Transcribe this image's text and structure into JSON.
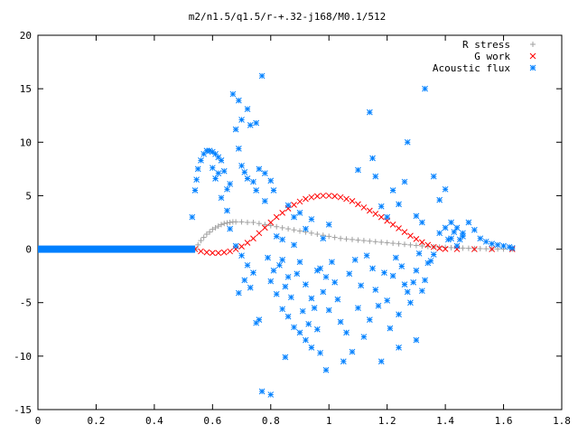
{
  "chart_data": {
    "type": "scatter",
    "title": "m2/n1.5/q1.5/r-+.32-j168/M0.1/512",
    "xlabel": "",
    "ylabel": "",
    "xlim": [
      0,
      1.8
    ],
    "ylim": [
      -15,
      20
    ],
    "x_ticks": [
      0,
      0.2,
      0.4,
      0.6,
      0.8,
      1,
      1.2,
      1.4,
      1.6,
      1.8
    ],
    "y_ticks": [
      -15,
      -10,
      -5,
      0,
      5,
      10,
      15,
      20
    ],
    "x_tick_labels": [
      "0",
      "0.2",
      "0.4",
      "0.6",
      "0.8",
      "1",
      "1.2",
      "1.4",
      "1.6",
      "1.8"
    ],
    "y_tick_labels": [
      "-15",
      "-10",
      "-5",
      "0",
      "5",
      "10",
      "15",
      "20"
    ],
    "grid": false,
    "legend_position": "top-right",
    "series": [
      {
        "name": "R stress",
        "marker": "plus",
        "color": "#a0a0a0",
        "points": [
          [
            0.54,
            0.0
          ],
          [
            0.55,
            0.4
          ],
          [
            0.56,
            0.8
          ],
          [
            0.57,
            1.1
          ],
          [
            0.58,
            1.4
          ],
          [
            0.59,
            1.6
          ],
          [
            0.6,
            1.85
          ],
          [
            0.61,
            2.0
          ],
          [
            0.62,
            2.15
          ],
          [
            0.63,
            2.3
          ],
          [
            0.64,
            2.4
          ],
          [
            0.65,
            2.45
          ],
          [
            0.66,
            2.5
          ],
          [
            0.67,
            2.55
          ],
          [
            0.68,
            2.55
          ],
          [
            0.7,
            2.55
          ],
          [
            0.72,
            2.5
          ],
          [
            0.74,
            2.5
          ],
          [
            0.76,
            2.4
          ],
          [
            0.78,
            2.3
          ],
          [
            0.8,
            2.2
          ],
          [
            0.82,
            2.1
          ],
          [
            0.84,
            2.0
          ],
          [
            0.86,
            1.9
          ],
          [
            0.88,
            1.8
          ],
          [
            0.9,
            1.7
          ],
          [
            0.92,
            1.6
          ],
          [
            0.94,
            1.5
          ],
          [
            0.96,
            1.4
          ],
          [
            0.98,
            1.3
          ],
          [
            1.0,
            1.2
          ],
          [
            1.02,
            1.1
          ],
          [
            1.04,
            1.0
          ],
          [
            1.06,
            0.95
          ],
          [
            1.08,
            0.9
          ],
          [
            1.1,
            0.85
          ],
          [
            1.12,
            0.8
          ],
          [
            1.14,
            0.75
          ],
          [
            1.16,
            0.7
          ],
          [
            1.18,
            0.65
          ],
          [
            1.2,
            0.6
          ],
          [
            1.22,
            0.55
          ],
          [
            1.24,
            0.5
          ],
          [
            1.26,
            0.45
          ],
          [
            1.28,
            0.4
          ],
          [
            1.3,
            0.35
          ],
          [
            1.32,
            0.3
          ],
          [
            1.34,
            0.25
          ],
          [
            1.36,
            0.22
          ],
          [
            1.38,
            0.2
          ],
          [
            1.4,
            0.17
          ],
          [
            1.42,
            0.14
          ],
          [
            1.44,
            0.12
          ],
          [
            1.46,
            0.1
          ],
          [
            1.48,
            0.08
          ],
          [
            1.5,
            0.06
          ],
          [
            1.52,
            0.05
          ],
          [
            1.54,
            0.04
          ],
          [
            1.56,
            0.03
          ],
          [
            1.58,
            0.02
          ],
          [
            1.6,
            0.01
          ],
          [
            1.63,
            0.0
          ]
        ]
      },
      {
        "name": "G work",
        "marker": "cross",
        "color": "#ff0000",
        "points": [
          [
            0.54,
            0.0
          ],
          [
            0.56,
            -0.2
          ],
          [
            0.58,
            -0.3
          ],
          [
            0.6,
            -0.35
          ],
          [
            0.62,
            -0.35
          ],
          [
            0.64,
            -0.3
          ],
          [
            0.66,
            -0.2
          ],
          [
            0.68,
            0.0
          ],
          [
            0.7,
            0.25
          ],
          [
            0.72,
            0.6
          ],
          [
            0.74,
            1.0
          ],
          [
            0.76,
            1.5
          ],
          [
            0.78,
            2.0
          ],
          [
            0.8,
            2.5
          ],
          [
            0.82,
            3.0
          ],
          [
            0.84,
            3.4
          ],
          [
            0.86,
            3.8
          ],
          [
            0.88,
            4.15
          ],
          [
            0.9,
            4.45
          ],
          [
            0.92,
            4.7
          ],
          [
            0.94,
            4.85
          ],
          [
            0.96,
            4.95
          ],
          [
            0.98,
            5.0
          ],
          [
            1.0,
            5.0
          ],
          [
            1.02,
            4.95
          ],
          [
            1.04,
            4.85
          ],
          [
            1.06,
            4.7
          ],
          [
            1.08,
            4.5
          ],
          [
            1.1,
            4.2
          ],
          [
            1.12,
            3.9
          ],
          [
            1.14,
            3.6
          ],
          [
            1.16,
            3.3
          ],
          [
            1.18,
            3.0
          ],
          [
            1.2,
            2.65
          ],
          [
            1.22,
            2.3
          ],
          [
            1.24,
            1.95
          ],
          [
            1.26,
            1.6
          ],
          [
            1.28,
            1.25
          ],
          [
            1.3,
            0.95
          ],
          [
            1.32,
            0.65
          ],
          [
            1.34,
            0.4
          ],
          [
            1.36,
            0.2
          ],
          [
            1.38,
            0.08
          ],
          [
            1.4,
            0.02
          ],
          [
            1.44,
            0.0
          ],
          [
            1.5,
            0.0
          ],
          [
            1.56,
            0.0
          ],
          [
            1.63,
            0.0
          ]
        ]
      },
      {
        "name": "Acoustic flux",
        "marker": "star",
        "color": "#0080ff",
        "points": [
          [
            0.53,
            3.0
          ],
          [
            0.54,
            5.5
          ],
          [
            0.545,
            6.5
          ],
          [
            0.55,
            7.5
          ],
          [
            0.56,
            8.3
          ],
          [
            0.57,
            8.9
          ],
          [
            0.58,
            9.2
          ],
          [
            0.59,
            9.2
          ],
          [
            0.6,
            9.1
          ],
          [
            0.61,
            8.9
          ],
          [
            0.62,
            8.6
          ],
          [
            0.63,
            8.3
          ],
          [
            0.6,
            7.6
          ],
          [
            0.61,
            6.6
          ],
          [
            0.62,
            7.1
          ],
          [
            0.64,
            7.3
          ],
          [
            0.65,
            5.6
          ],
          [
            0.66,
            6.1
          ],
          [
            0.63,
            4.8
          ],
          [
            0.65,
            3.6
          ],
          [
            0.67,
            14.5
          ],
          [
            0.69,
            13.9
          ],
          [
            0.7,
            12.1
          ],
          [
            0.72,
            13.1
          ],
          [
            0.68,
            11.2
          ],
          [
            0.73,
            11.6
          ],
          [
            0.69,
            9.4
          ],
          [
            0.7,
            7.8
          ],
          [
            0.71,
            7.2
          ],
          [
            0.72,
            6.6
          ],
          [
            0.74,
            6.3
          ],
          [
            0.75,
            5.5
          ],
          [
            0.76,
            7.5
          ],
          [
            0.77,
            16.2
          ],
          [
            0.75,
            11.8
          ],
          [
            0.78,
            7.1
          ],
          [
            0.8,
            6.4
          ],
          [
            0.66,
            1.9
          ],
          [
            0.68,
            0.3
          ],
          [
            0.7,
            -0.6
          ],
          [
            0.72,
            -1.5
          ],
          [
            0.74,
            -2.2
          ],
          [
            0.69,
            -4.1
          ],
          [
            0.71,
            -2.9
          ],
          [
            0.73,
            -3.6
          ],
          [
            0.75,
            -6.9
          ],
          [
            0.76,
            -6.6
          ],
          [
            0.77,
            -13.3
          ],
          [
            0.8,
            -13.6
          ],
          [
            0.8,
            -3.0
          ],
          [
            0.82,
            -4.2
          ],
          [
            0.84,
            -5.6
          ],
          [
            0.86,
            -6.3
          ],
          [
            0.88,
            -7.3
          ],
          [
            0.9,
            -7.8
          ],
          [
            0.92,
            -8.5
          ],
          [
            0.94,
            -9.2
          ],
          [
            0.96,
            -7.5
          ],
          [
            0.97,
            -9.7
          ],
          [
            0.99,
            -11.3
          ],
          [
            0.85,
            -10.1
          ],
          [
            0.82,
            1.2
          ],
          [
            0.84,
            -1.0
          ],
          [
            0.86,
            -2.6
          ],
          [
            0.88,
            0.4
          ],
          [
            0.9,
            -1.2
          ],
          [
            0.92,
            -3.3
          ],
          [
            0.94,
            -4.6
          ],
          [
            0.96,
            -2.0
          ],
          [
            0.98,
            -4.0
          ],
          [
            1.0,
            -5.7
          ],
          [
            1.02,
            -3.1
          ],
          [
            1.04,
            -6.8
          ],
          [
            1.05,
            -10.5
          ],
          [
            1.06,
            -7.8
          ],
          [
            1.08,
            -9.6
          ],
          [
            1.1,
            -5.5
          ],
          [
            1.12,
            -8.2
          ],
          [
            1.14,
            -6.6
          ],
          [
            1.16,
            -3.8
          ],
          [
            1.18,
            -10.5
          ],
          [
            1.2,
            -4.8
          ],
          [
            1.21,
            -7.4
          ],
          [
            1.22,
            -2.5
          ],
          [
            1.24,
            -6.1
          ],
          [
            1.26,
            -3.3
          ],
          [
            1.28,
            -5.0
          ],
          [
            1.3,
            -2.0
          ],
          [
            1.32,
            -3.9
          ],
          [
            1.24,
            -9.2
          ],
          [
            1.3,
            -8.5
          ],
          [
            1.34,
            -1.3
          ],
          [
            1.36,
            -0.5
          ],
          [
            1.38,
            1.5
          ],
          [
            1.4,
            2.0
          ],
          [
            1.42,
            1.0
          ],
          [
            1.44,
            0.3
          ],
          [
            1.46,
            1.5
          ],
          [
            1.48,
            2.5
          ],
          [
            1.5,
            1.8
          ],
          [
            1.52,
            1.0
          ],
          [
            1.54,
            0.7
          ],
          [
            1.56,
            0.5
          ],
          [
            1.58,
            0.4
          ],
          [
            1.6,
            0.3
          ],
          [
            1.62,
            0.2
          ],
          [
            1.63,
            0.1
          ],
          [
            1.42,
            2.5
          ],
          [
            1.44,
            2.0
          ],
          [
            1.46,
            1.2
          ],
          [
            1.45,
            0.9
          ],
          [
            1.43,
            1.6
          ],
          [
            1.41,
            0.9
          ],
          [
            1.14,
            12.8
          ],
          [
            1.16,
            6.8
          ],
          [
            1.18,
            4.0
          ],
          [
            1.2,
            3.0
          ],
          [
            1.22,
            5.5
          ],
          [
            1.24,
            4.2
          ],
          [
            1.26,
            6.3
          ],
          [
            1.27,
            10.0
          ],
          [
            1.3,
            3.1
          ],
          [
            1.32,
            2.5
          ],
          [
            1.33,
            15.0
          ],
          [
            1.36,
            6.8
          ],
          [
            1.38,
            4.6
          ],
          [
            1.4,
            5.6
          ],
          [
            1.15,
            8.5
          ],
          [
            1.1,
            7.4
          ],
          [
            1.0,
            2.3
          ],
          [
            0.98,
            1.0
          ],
          [
            0.92,
            1.9
          ],
          [
            0.88,
            3.0
          ],
          [
            0.86,
            4.1
          ],
          [
            0.94,
            2.8
          ],
          [
            0.81,
            5.5
          ],
          [
            0.78,
            4.5
          ],
          [
            0.9,
            3.4
          ],
          [
            0.84,
            0.9
          ],
          [
            0.79,
            -0.8
          ],
          [
            0.81,
            -2.0
          ],
          [
            0.83,
            -1.5
          ],
          [
            0.85,
            -3.5
          ],
          [
            0.87,
            -4.5
          ],
          [
            0.89,
            -2.3
          ],
          [
            0.91,
            -5.8
          ],
          [
            0.93,
            -7.0
          ],
          [
            0.95,
            -5.5
          ],
          [
            0.97,
            -1.8
          ],
          [
            0.99,
            -2.6
          ],
          [
            1.01,
            -1.2
          ],
          [
            1.03,
            -4.7
          ],
          [
            1.07,
            -2.3
          ],
          [
            1.09,
            -1.0
          ],
          [
            1.11,
            -3.4
          ],
          [
            1.13,
            -0.6
          ],
          [
            1.15,
            -1.8
          ],
          [
            1.17,
            -5.3
          ],
          [
            1.19,
            -2.2
          ],
          [
            1.23,
            -0.8
          ],
          [
            1.25,
            -1.6
          ],
          [
            1.27,
            -4.0
          ],
          [
            1.29,
            -3.1
          ],
          [
            1.31,
            -0.4
          ],
          [
            1.33,
            -2.9
          ],
          [
            1.35,
            -1.1
          ]
        ]
      },
      {
        "name": "Acoustic flux baseline",
        "marker": "star",
        "color": "#0080ff",
        "legend": false,
        "line_points": [
          [
            0.0,
            0.0
          ],
          [
            0.54,
            0.0
          ]
        ]
      }
    ]
  }
}
